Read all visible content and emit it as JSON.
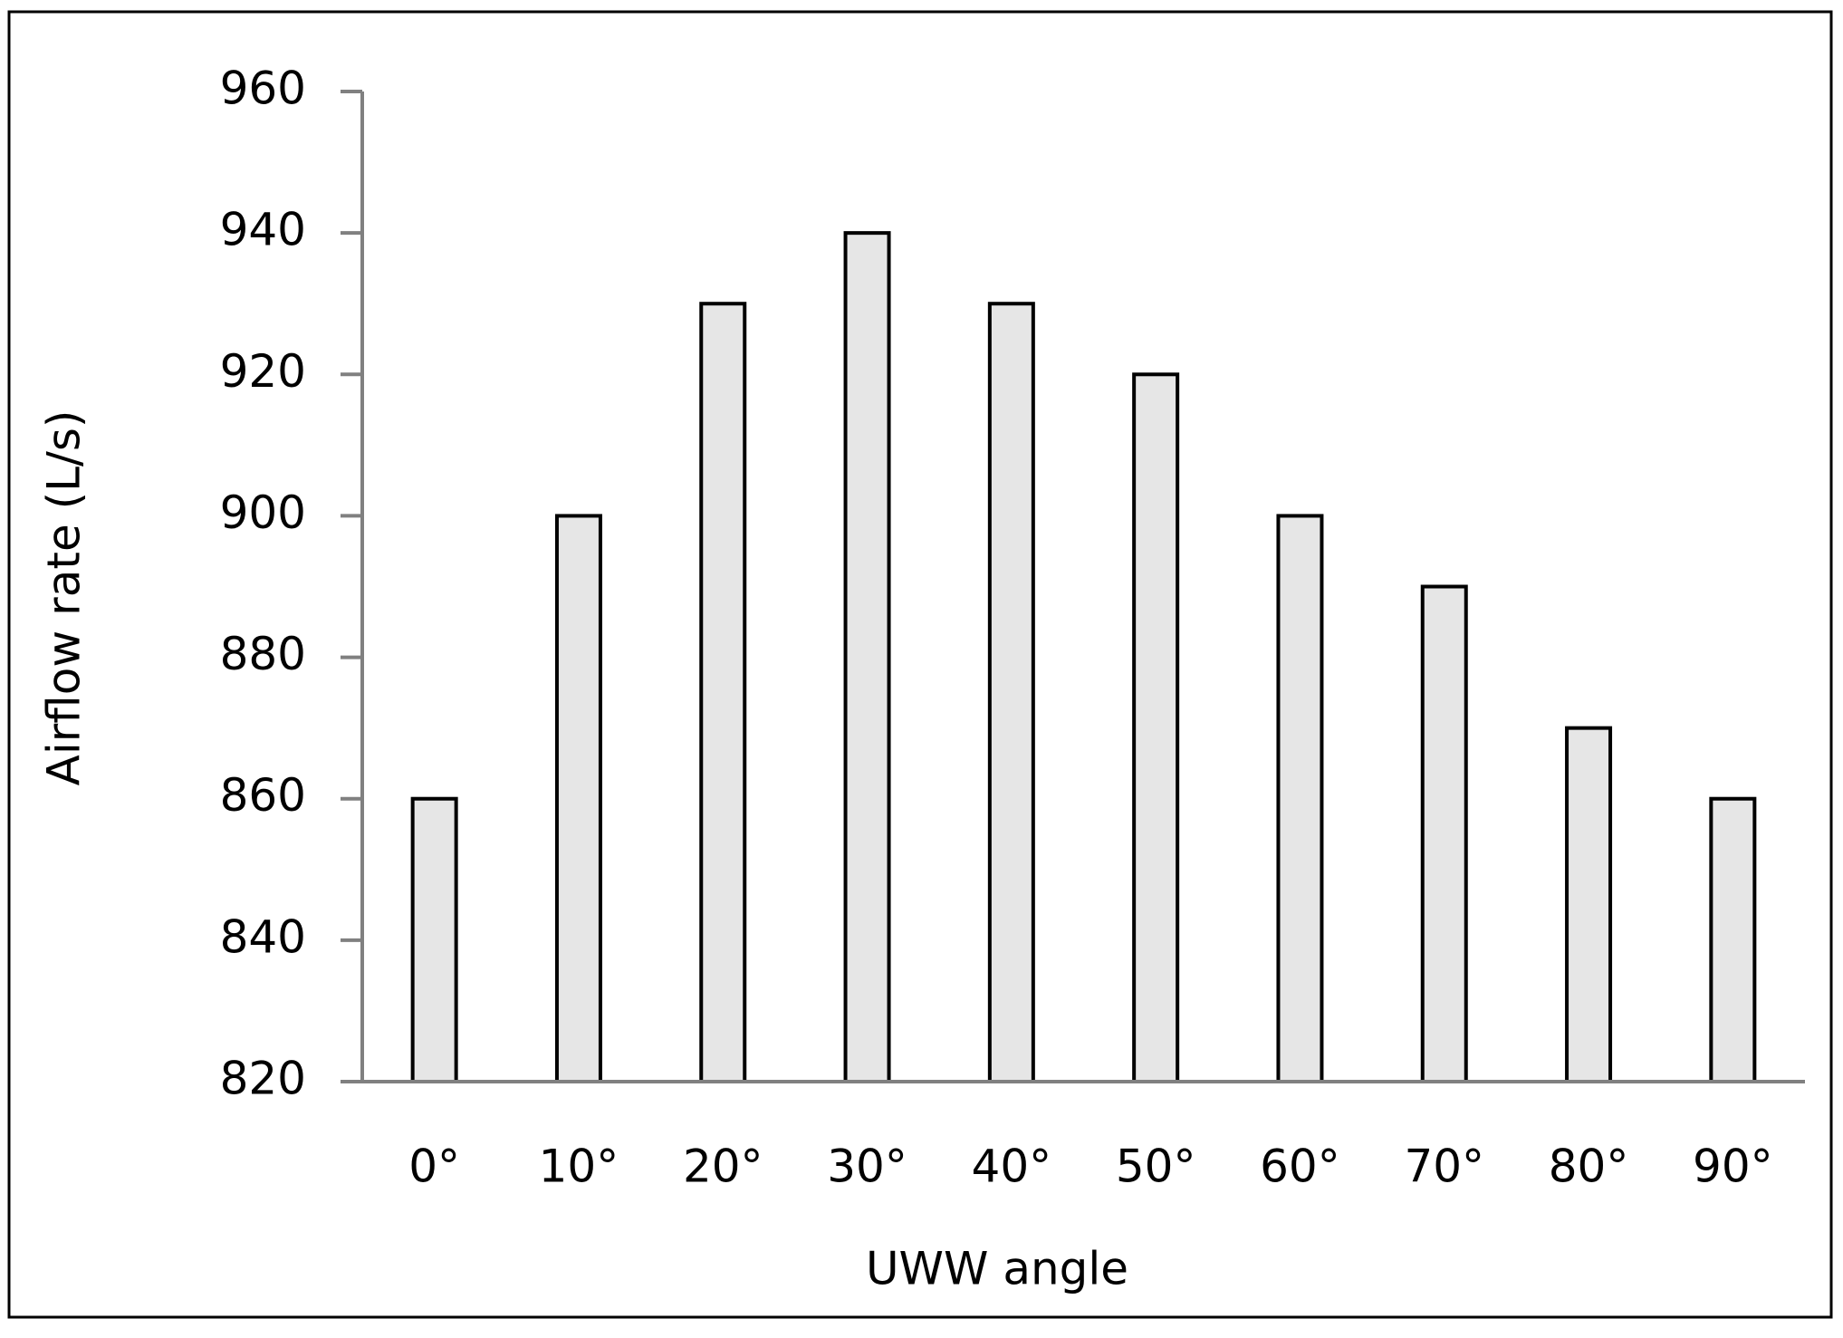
{
  "chart_data": {
    "type": "bar",
    "x_label": "UWW angle",
    "y_label": "Airflow rate (L/s)",
    "categories": [
      "0°",
      "10°",
      "20°",
      "30°",
      "40°",
      "50°",
      "60°",
      "70°",
      "80°",
      "90°"
    ],
    "values": [
      860,
      900,
      930,
      940,
      930,
      920,
      900,
      890,
      870,
      860
    ],
    "color": "#e6e6e6",
    "ylim": [
      820,
      960
    ],
    "yticks": [
      820,
      840,
      860,
      880,
      900,
      920,
      940,
      960
    ],
    "grid": false
  }
}
